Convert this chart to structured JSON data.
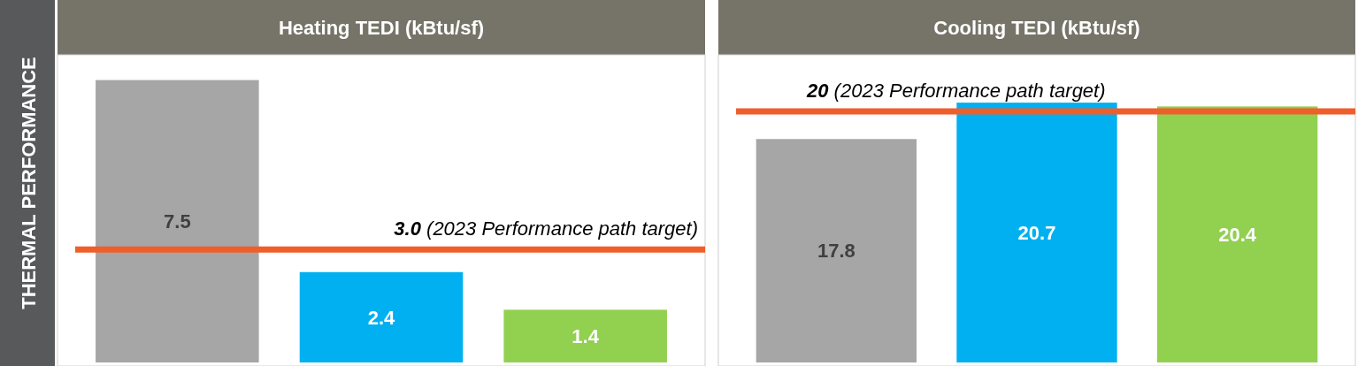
{
  "chart_data": [
    {
      "type": "bar",
      "title": "Heating TEDI (kBtu/sf)",
      "ylabel": "THERMAL PERFORMANCE",
      "categories": [
        null,
        null,
        null
      ],
      "values": [
        7.5,
        2.4,
        1.4
      ],
      "colors": [
        "#a6a6a6",
        "#00b0f0",
        "#92d050"
      ],
      "data_labels": true,
      "ylim": [
        0,
        8.1
      ],
      "ref_lines": [
        {
          "axis": "y",
          "value": 3.0,
          "label": "3.0 (2023 Performance path target)",
          "color": "#ef5f2b"
        }
      ]
    },
    {
      "type": "bar",
      "title": "Cooling TEDI (kBtu/sf)",
      "categories": [
        null,
        null,
        null
      ],
      "values": [
        17.8,
        20.7,
        20.4
      ],
      "colors": [
        "#a6a6a6",
        "#00b0f0",
        "#92d050"
      ],
      "data_labels": true,
      "ylim": [
        0,
        24.3
      ],
      "ref_lines": [
        {
          "axis": "y",
          "value": 20,
          "label": "20 (2023 Performance path target)",
          "color": "#ef5f2b"
        }
      ]
    }
  ]
}
